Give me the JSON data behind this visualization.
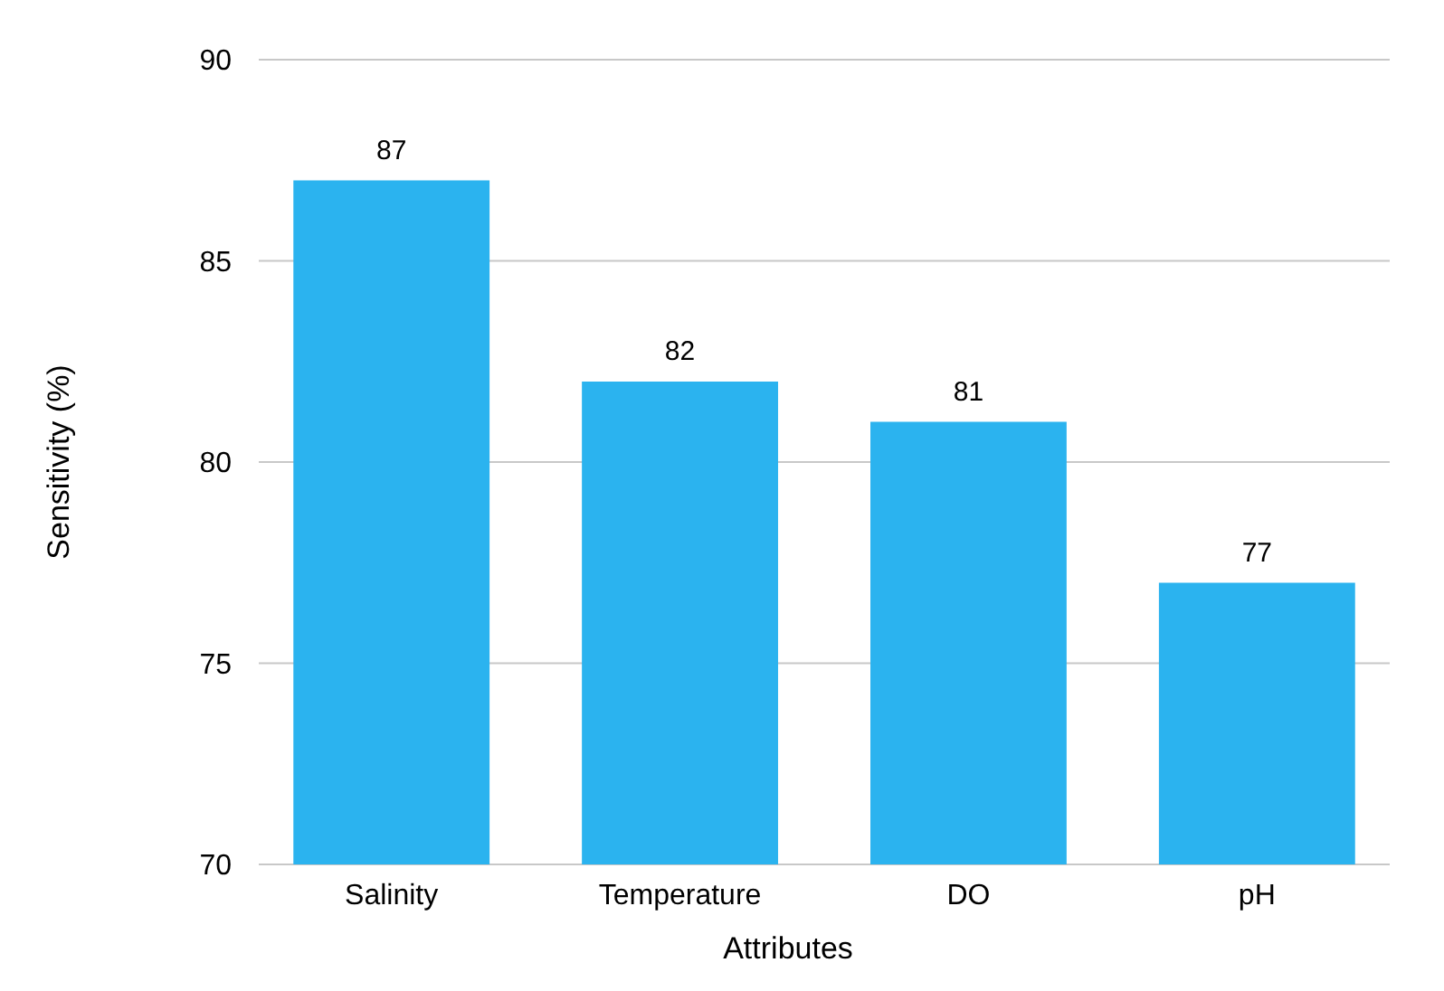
{
  "chart_data": {
    "type": "bar",
    "xlabel": "Attributes",
    "ylabel": "Sensitivity (%)",
    "categories": [
      "Salinity",
      "Temperature",
      "DO",
      "pH"
    ],
    "values": [
      87,
      82,
      81,
      77
    ],
    "color": "#2bb3ef",
    "ylim": [
      70,
      90
    ],
    "yticks": [
      70,
      75,
      80,
      85,
      90
    ],
    "grid": "y",
    "data_labels": true
  }
}
